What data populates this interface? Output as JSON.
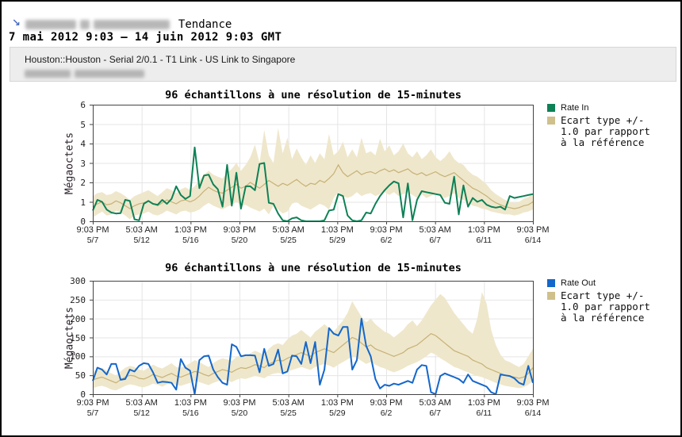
{
  "header": {
    "arrow_icon": "↘",
    "title": "Tendance",
    "date_range": "7 mai 2012 9:03 – 14 juin 2012 9:03 GMT",
    "device_info": "Houston::Houston - Serial 2/0.1 - T1 Link - US Link to Singapore"
  },
  "colors": {
    "arrow_blue": "#4d6fc0",
    "panel_bg": "#ededed",
    "grid": "#e5e5e5",
    "frame": "#444444",
    "band_fill": "#efe7cb",
    "band_line": "#c6b176",
    "band_swatch": "#cfc08c",
    "rate_in_green": "#0e8156",
    "rate_out_blue": "#1467cb"
  },
  "chart_data": [
    {
      "type": "line",
      "title": "96 échantillons à une résolution de 15-minutes",
      "ylabel": "Mégaoctets",
      "ylim": [
        0,
        6
      ],
      "yticks": [
        0,
        1,
        2,
        3,
        4,
        5,
        6
      ],
      "grid": true,
      "legend_position": "right",
      "x_ticks": [
        {
          "time": "9:03 PM",
          "date": "5/7"
        },
        {
          "time": "5:03 AM",
          "date": "5/12"
        },
        {
          "time": "1:03 PM",
          "date": "5/16"
        },
        {
          "time": "9:03 PM",
          "date": "5/20"
        },
        {
          "time": "5:03 AM",
          "date": "5/25"
        },
        {
          "time": "1:03 PM",
          "date": "5/29"
        },
        {
          "time": "9:03 PM",
          "date": "6/2"
        },
        {
          "time": "5:03 AM",
          "date": "6/7"
        },
        {
          "time": "1:03 PM",
          "date": "6/11"
        },
        {
          "time": "9:03 PM",
          "date": "6/14"
        }
      ],
      "series": [
        {
          "name": "Rate In",
          "color": "#0e8156",
          "values": [
            0.55,
            1.1,
            1.0,
            0.6,
            0.45,
            0.4,
            0.42,
            1.1,
            1.05,
            0.1,
            0.05,
            0.9,
            1.05,
            0.9,
            0.85,
            1.1,
            0.9,
            1.15,
            1.8,
            1.35,
            1.15,
            1.3,
            3.8,
            1.7,
            2.35,
            2.4,
            1.9,
            1.65,
            0.75,
            2.9,
            0.8,
            2.5,
            0.65,
            1.8,
            1.8,
            1.6,
            2.95,
            3.0,
            0.95,
            0.9,
            0.4,
            0.05,
            0.0,
            0.15,
            0.2,
            0.05,
            0.0,
            0.0,
            0.0,
            0.0,
            0.05,
            0.55,
            0.6,
            1.4,
            1.3,
            0.3,
            0.05,
            0.0,
            0.05,
            0.45,
            0.4,
            0.9,
            1.3,
            1.6,
            1.85,
            2.05,
            1.95,
            0.2,
            1.95,
            0.05,
            1.1,
            1.55,
            1.5,
            1.45,
            1.4,
            1.35,
            0.95,
            0.9,
            2.3,
            0.35,
            1.85,
            0.75,
            1.2,
            1.0,
            1.1,
            0.85,
            0.75,
            0.7,
            0.75,
            0.6,
            1.3,
            1.2,
            1.25,
            1.3,
            1.35,
            1.4
          ]
        },
        {
          "name": "Ecart type +/-\n1.0 par rapport\nà la référence",
          "role": "band",
          "fill": "#efe7cb",
          "line_color": "#c6b176",
          "swatch": "#cfc08c",
          "center": [
            0.75,
            0.9,
            1.0,
            0.85,
            0.9,
            1.05,
            0.95,
            0.8,
            0.65,
            0.8,
            0.9,
            0.95,
            1.05,
            0.9,
            0.8,
            0.95,
            1.1,
            1.0,
            0.9,
            1.05,
            1.1,
            1.0,
            1.1,
            1.3,
            1.55,
            1.75,
            1.6,
            1.5,
            1.45,
            1.6,
            1.75,
            1.9,
            1.7,
            1.8,
            2.0,
            1.85,
            1.7,
            1.9,
            2.1,
            1.95,
            1.8,
            1.95,
            1.85,
            2.0,
            2.15,
            1.95,
            1.8,
            1.95,
            1.9,
            2.1,
            2.0,
            2.2,
            2.45,
            2.9,
            2.5,
            2.3,
            2.45,
            2.6,
            2.4,
            2.5,
            2.55,
            2.45,
            2.6,
            2.7,
            2.55,
            2.65,
            2.5,
            2.6,
            2.7,
            2.5,
            2.4,
            2.5,
            2.35,
            2.45,
            2.55,
            2.4,
            2.3,
            2.4,
            2.5,
            2.3,
            2.1,
            1.9,
            1.7,
            1.6,
            1.45,
            1.3,
            1.1,
            0.95,
            0.85,
            0.75,
            0.7,
            0.65,
            0.7,
            0.8,
            0.85,
            1.0
          ],
          "upper": [
            1.3,
            1.45,
            1.5,
            1.35,
            1.4,
            1.55,
            1.45,
            1.3,
            1.1,
            1.3,
            1.4,
            1.5,
            1.6,
            1.45,
            1.3,
            1.5,
            1.7,
            1.6,
            1.45,
            1.65,
            1.75,
            1.6,
            1.8,
            2.1,
            2.4,
            2.6,
            2.4,
            2.3,
            2.2,
            2.5,
            2.7,
            3.0,
            2.6,
            2.9,
            3.3,
            3.95,
            3.0,
            4.7,
            3.4,
            3.0,
            4.8,
            3.5,
            4.3,
            3.2,
            3.75,
            3.3,
            2.9,
            3.4,
            3.0,
            3.5,
            3.2,
            4.5,
            3.4,
            3.6,
            4.1,
            3.3,
            3.7,
            3.3,
            4.3,
            3.5,
            3.6,
            3.4,
            4.25,
            3.6,
            3.9,
            3.4,
            3.6,
            4.0,
            3.5,
            3.3,
            3.6,
            3.2,
            3.4,
            3.7,
            3.3,
            3.1,
            3.3,
            3.6,
            3.2,
            3.0,
            2.9,
            2.6,
            2.4,
            2.3,
            2.1,
            1.9,
            1.6,
            1.4,
            1.25,
            1.1,
            1.0,
            0.95,
            1.0,
            1.15,
            1.25,
            1.45
          ],
          "lower": [
            0.2,
            0.35,
            0.5,
            0.3,
            0.35,
            0.55,
            0.45,
            0.3,
            0.1,
            0.3,
            0.35,
            0.4,
            0.5,
            0.35,
            0.3,
            0.4,
            0.55,
            0.45,
            0.35,
            0.5,
            0.55,
            0.45,
            0.5,
            0.6,
            0.8,
            0.95,
            0.8,
            0.7,
            0.6,
            0.75,
            0.85,
            1.0,
            0.8,
            0.85,
            0.7,
            0.6,
            0.5,
            0.65,
            0.35,
            0.8,
            0.6,
            0.4,
            0.5,
            0.9,
            1.0,
            0.8,
            0.7,
            0.6,
            0.75,
            0.9,
            0.8,
            0.6,
            1.2,
            1.5,
            1.3,
            1.2,
            1.3,
            1.5,
            1.3,
            1.4,
            1.45,
            1.3,
            1.4,
            1.5,
            1.35,
            1.5,
            1.3,
            1.4,
            1.5,
            1.35,
            1.2,
            1.4,
            1.2,
            1.3,
            1.45,
            1.3,
            1.2,
            1.3,
            1.45,
            1.2,
            1.1,
            0.95,
            0.8,
            0.75,
            0.65,
            0.6,
            0.5,
            0.45,
            0.4,
            0.35,
            0.35,
            0.3,
            0.35,
            0.45,
            0.5,
            0.6
          ]
        }
      ]
    },
    {
      "type": "line",
      "title": "96 échantillons à une résolution de 15-minutes",
      "ylabel": "Mégaoctets",
      "ylim": [
        0,
        300
      ],
      "yticks": [
        0,
        50,
        100,
        150,
        200,
        250,
        300
      ],
      "grid": true,
      "legend_position": "right",
      "x_ticks": [
        {
          "time": "9:03 PM",
          "date": "5/7"
        },
        {
          "time": "5:03 AM",
          "date": "5/12"
        },
        {
          "time": "1:03 PM",
          "date": "5/16"
        },
        {
          "time": "9:03 PM",
          "date": "5/20"
        },
        {
          "time": "5:03 AM",
          "date": "5/25"
        },
        {
          "time": "1:03 PM",
          "date": "5/29"
        },
        {
          "time": "9:03 PM",
          "date": "6/2"
        },
        {
          "time": "5:03 AM",
          "date": "6/7"
        },
        {
          "time": "1:03 PM",
          "date": "6/11"
        },
        {
          "time": "9:03 PM",
          "date": "6/14"
        }
      ],
      "series": [
        {
          "name": "Rate Out",
          "color": "#1467cb",
          "values": [
            35,
            70,
            65,
            52,
            80,
            80,
            38,
            40,
            65,
            60,
            75,
            82,
            80,
            58,
            30,
            33,
            32,
            30,
            12,
            93,
            70,
            62,
            0,
            90,
            100,
            102,
            65,
            45,
            30,
            25,
            132,
            125,
            100,
            103,
            103,
            102,
            58,
            120,
            75,
            80,
            118,
            55,
            60,
            102,
            100,
            80,
            138,
            82,
            138,
            25,
            65,
            175,
            160,
            155,
            178,
            178,
            65,
            90,
            200,
            128,
            100,
            40,
            15,
            25,
            22,
            28,
            25,
            30,
            35,
            30,
            65,
            77,
            75,
            5,
            0,
            48,
            55,
            50,
            45,
            40,
            30,
            52,
            35,
            30,
            25,
            20,
            5,
            0,
            52,
            50,
            48,
            42,
            30,
            25,
            75,
            30
          ]
        },
        {
          "name": "Ecart type +/-\n1.0 par rapport\nà la référence",
          "role": "band",
          "fill": "#efe7cb",
          "line_color": "#c6b176",
          "swatch": "#cfc08c",
          "center": [
            38,
            42,
            45,
            40,
            35,
            30,
            38,
            45,
            50,
            48,
            42,
            40,
            45,
            52,
            48,
            44,
            50,
            55,
            48,
            45,
            50,
            55,
            60,
            58,
            52,
            48,
            55,
            60,
            65,
            62,
            58,
            65,
            70,
            68,
            72,
            78,
            75,
            70,
            80,
            85,
            90,
            88,
            95,
            100,
            105,
            110,
            105,
            100,
            110,
            115,
            120,
            115,
            110,
            120,
            130,
            140,
            150,
            145,
            135,
            125,
            130,
            120,
            115,
            110,
            105,
            100,
            105,
            110,
            120,
            125,
            130,
            140,
            150,
            160,
            155,
            145,
            135,
            125,
            115,
            110,
            105,
            100,
            90,
            85,
            80,
            70,
            65,
            60,
            55,
            50,
            48,
            45,
            42,
            45,
            55,
            70
          ],
          "upper": [
            60,
            65,
            70,
            62,
            55,
            50,
            60,
            70,
            75,
            72,
            65,
            62,
            70,
            78,
            72,
            68,
            75,
            82,
            72,
            70,
            75,
            82,
            90,
            85,
            78,
            72,
            82,
            90,
            95,
            92,
            88,
            98,
            105,
            100,
            108,
            115,
            110,
            105,
            120,
            130,
            135,
            130,
            145,
            155,
            160,
            170,
            160,
            150,
            165,
            175,
            185,
            175,
            165,
            180,
            195,
            215,
            246,
            225,
            205,
            190,
            200,
            185,
            175,
            165,
            160,
            150,
            160,
            170,
            185,
            195,
            180,
            195,
            215,
            235,
            250,
            265,
            255,
            235,
            215,
            200,
            185,
            170,
            160,
            200,
            270,
            240,
            170,
            130,
            105,
            90,
            85,
            78,
            72,
            80,
            100,
            120
          ],
          "lower": [
            15,
            20,
            22,
            18,
            12,
            10,
            16,
            22,
            26,
            24,
            20,
            18,
            22,
            28,
            25,
            20,
            26,
            30,
            24,
            22,
            26,
            30,
            34,
            32,
            28,
            24,
            30,
            34,
            38,
            36,
            32,
            38,
            42,
            40,
            44,
            48,
            46,
            42,
            50,
            54,
            56,
            54,
            60,
            64,
            68,
            72,
            68,
            64,
            72,
            76,
            80,
            76,
            70,
            78,
            85,
            92,
            100,
            96,
            88,
            80,
            85,
            78,
            72,
            68,
            62,
            58,
            62,
            68,
            75,
            80,
            85,
            92,
            100,
            110,
            105,
            95,
            88,
            80,
            72,
            68,
            62,
            58,
            52,
            48,
            45,
            40,
            35,
            30,
            26,
            22,
            20,
            18,
            16,
            18,
            25,
            35
          ]
        }
      ]
    }
  ]
}
